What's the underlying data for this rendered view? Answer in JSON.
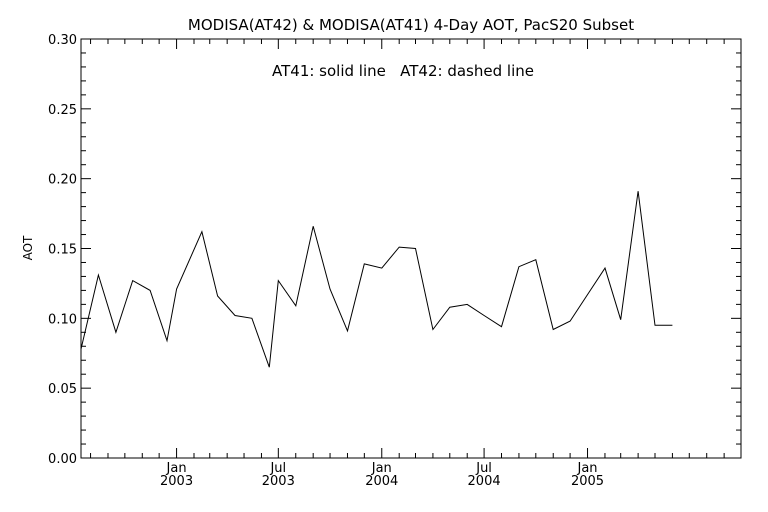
{
  "chart_data": {
    "type": "line",
    "title": "MODISA(AT42) & MODISA(AT41) 4-Day AOT, PacS20 Subset",
    "annotation": "AT41: solid line   AT42: dashed line",
    "xlabel": "",
    "ylabel": "AOT",
    "xlim": [
      "2002-07-15",
      "2005-10-01"
    ],
    "ylim": [
      0.0,
      0.3
    ],
    "y_ticks": [
      "0.00",
      "0.05",
      "0.10",
      "0.15",
      "0.20",
      "0.25",
      "0.30"
    ],
    "x_ticks": [
      {
        "date": "2003-01-01",
        "line1": "Jan",
        "line2": "2003"
      },
      {
        "date": "2003-07-01",
        "line1": "Jul",
        "line2": "2003"
      },
      {
        "date": "2004-01-01",
        "line1": "Jan",
        "line2": "2004"
      },
      {
        "date": "2004-07-01",
        "line1": "Jul",
        "line2": "2004"
      },
      {
        "date": "2005-01-01",
        "line1": "Jan",
        "line2": "2005"
      }
    ],
    "grid": false,
    "series": [
      {
        "name": "AT41",
        "style": "solid",
        "color": "#000000",
        "x": [
          "2002-07-15",
          "2002-08-15",
          "2002-09-15",
          "2002-10-15",
          "2002-11-15",
          "2002-12-15",
          "2003-01-01",
          "2003-02-15",
          "2003-03-15",
          "2003-04-15",
          "2003-05-15",
          "2003-06-15",
          "2003-07-01",
          "2003-08-01",
          "2003-09-01",
          "2003-10-01",
          "2003-11-01",
          "2003-12-01",
          "2004-01-01",
          "2004-02-01",
          "2004-03-01",
          "2004-04-01",
          "2004-05-01",
          "2004-06-01",
          "2004-07-01",
          "2004-08-01",
          "2004-09-01",
          "2004-10-01",
          "2004-11-01",
          "2004-12-01",
          "2005-01-01",
          "2005-02-01",
          "2005-03-01",
          "2005-04-01",
          "2005-05-01",
          "2005-06-01"
        ],
        "y": [
          0.078,
          0.131,
          0.09,
          0.127,
          0.12,
          0.084,
          0.121,
          0.162,
          0.116,
          0.102,
          0.1,
          0.065,
          0.127,
          0.109,
          0.166,
          0.121,
          0.091,
          0.139,
          0.136,
          0.151,
          0.15,
          0.092,
          0.108,
          0.11,
          0.102,
          0.094,
          0.137,
          0.142,
          0.092,
          0.098,
          0.117,
          0.136,
          0.099,
          0.191,
          0.095,
          0.095
        ]
      }
    ]
  }
}
